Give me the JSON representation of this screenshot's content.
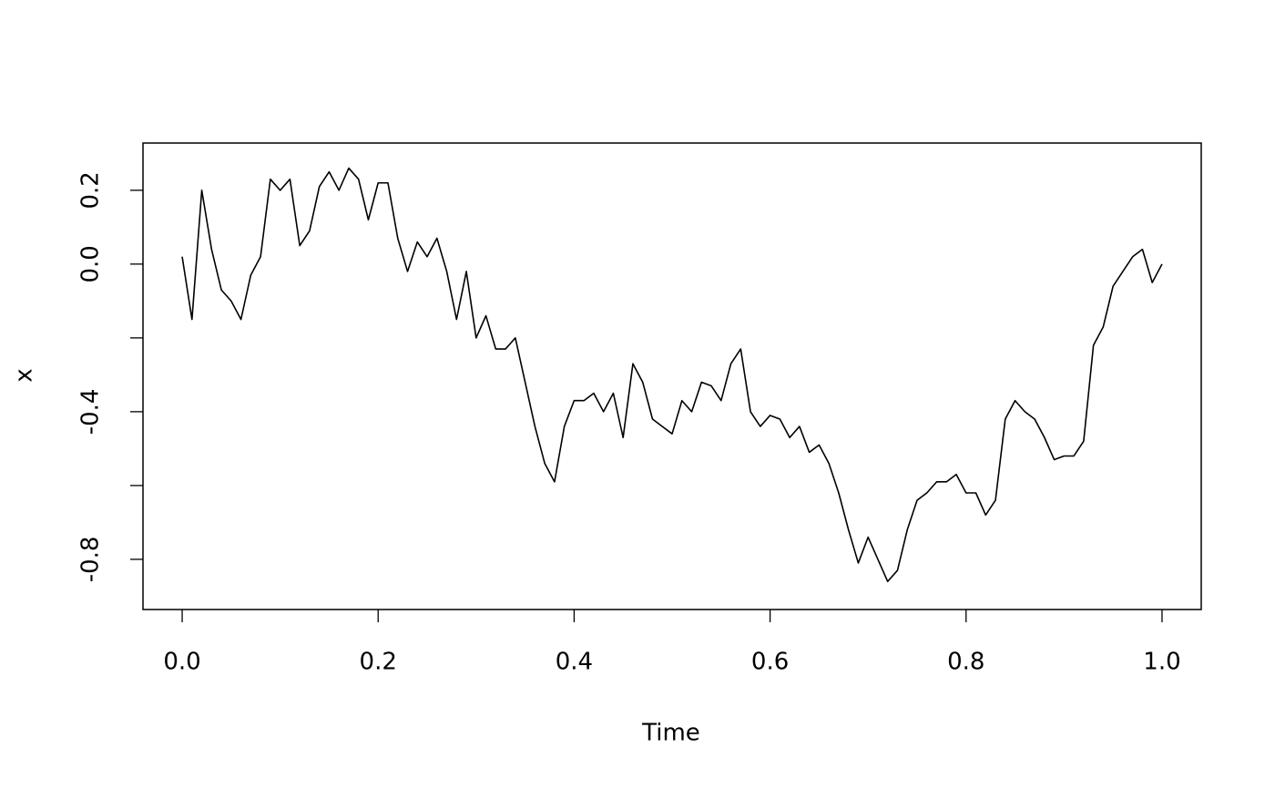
{
  "chart_data": {
    "type": "line",
    "x_label": "Time",
    "y_label": "x",
    "x": [
      0,
      0.01,
      0.02,
      0.03,
      0.04,
      0.05,
      0.06,
      0.07,
      0.08,
      0.09,
      0.1,
      0.11,
      0.12,
      0.13,
      0.14,
      0.15,
      0.16,
      0.17,
      0.18,
      0.19,
      0.2,
      0.21,
      0.22,
      0.23,
      0.24,
      0.25,
      0.26,
      0.27,
      0.28,
      0.29,
      0.3,
      0.31,
      0.32,
      0.33,
      0.34,
      0.35,
      0.36,
      0.37,
      0.38,
      0.39,
      0.4,
      0.41,
      0.42,
      0.43,
      0.44,
      0.45,
      0.46,
      0.47,
      0.48,
      0.49,
      0.5,
      0.51,
      0.52,
      0.53,
      0.54,
      0.55,
      0.56,
      0.57,
      0.58,
      0.59,
      0.6,
      0.61,
      0.62,
      0.63,
      0.64,
      0.65,
      0.66,
      0.67,
      0.68,
      0.69,
      0.7,
      0.71,
      0.72,
      0.73,
      0.74,
      0.75,
      0.76,
      0.77,
      0.78,
      0.79,
      0.8,
      0.81,
      0.82,
      0.83,
      0.84,
      0.85,
      0.86,
      0.87,
      0.88,
      0.89,
      0.9,
      0.91,
      0.92,
      0.93,
      0.94,
      0.95,
      0.96,
      0.97,
      0.98,
      0.99,
      1
    ],
    "values": [
      0.02,
      -0.15,
      0.2,
      0.04,
      -0.07,
      -0.1,
      -0.15,
      -0.03,
      0.02,
      0.23,
      0.2,
      0.23,
      0.05,
      0.09,
      0.21,
      0.25,
      0.2,
      0.26,
      0.23,
      0.12,
      0.22,
      0.22,
      0.07,
      -0.02,
      0.06,
      0.02,
      0.07,
      -0.02,
      -0.15,
      -0.02,
      -0.2,
      -0.14,
      -0.23,
      -0.23,
      -0.2,
      -0.32,
      -0.44,
      -0.54,
      -0.59,
      -0.44,
      -0.37,
      -0.37,
      -0.35,
      -0.4,
      -0.35,
      -0.47,
      -0.27,
      -0.32,
      -0.42,
      -0.44,
      -0.46,
      -0.37,
      -0.4,
      -0.32,
      -0.33,
      -0.37,
      -0.27,
      -0.23,
      -0.4,
      -0.44,
      -0.41,
      -0.42,
      -0.47,
      -0.44,
      -0.51,
      -0.49,
      -0.54,
      -0.62,
      -0.72,
      -0.81,
      -0.74,
      -0.8,
      -0.86,
      -0.83,
      -0.72,
      -0.64,
      -0.62,
      -0.59,
      -0.59,
      -0.57,
      -0.62,
      -0.62,
      -0.68,
      -0.64,
      -0.42,
      -0.37,
      -0.4,
      -0.42,
      -0.47,
      -0.53,
      -0.52,
      -0.52,
      -0.48,
      -0.22,
      -0.17,
      -0.06,
      -0.02,
      0.02,
      0.04,
      -0.05,
      0
    ],
    "color": "#000000",
    "xlim": [
      -0.04,
      1.04
    ],
    "ylim": [
      -0.936,
      0.328
    ],
    "xticks": [
      {
        "value": 0,
        "label": "0.0"
      },
      0.2,
      0.4,
      0.6,
      0.8,
      {
        "value": 1,
        "label": "1.0"
      }
    ],
    "yticks": [
      {
        "value": -0.8,
        "label": "-0.8"
      },
      {
        "value": -0.6,
        "label": null
      },
      {
        "value": -0.4,
        "label": "-0.4"
      },
      {
        "value": -0.2,
        "label": null
      },
      {
        "value": 0,
        "label": "0.0"
      },
      {
        "value": 0.2,
        "label": "0.2"
      }
    ],
    "grid": false
  }
}
